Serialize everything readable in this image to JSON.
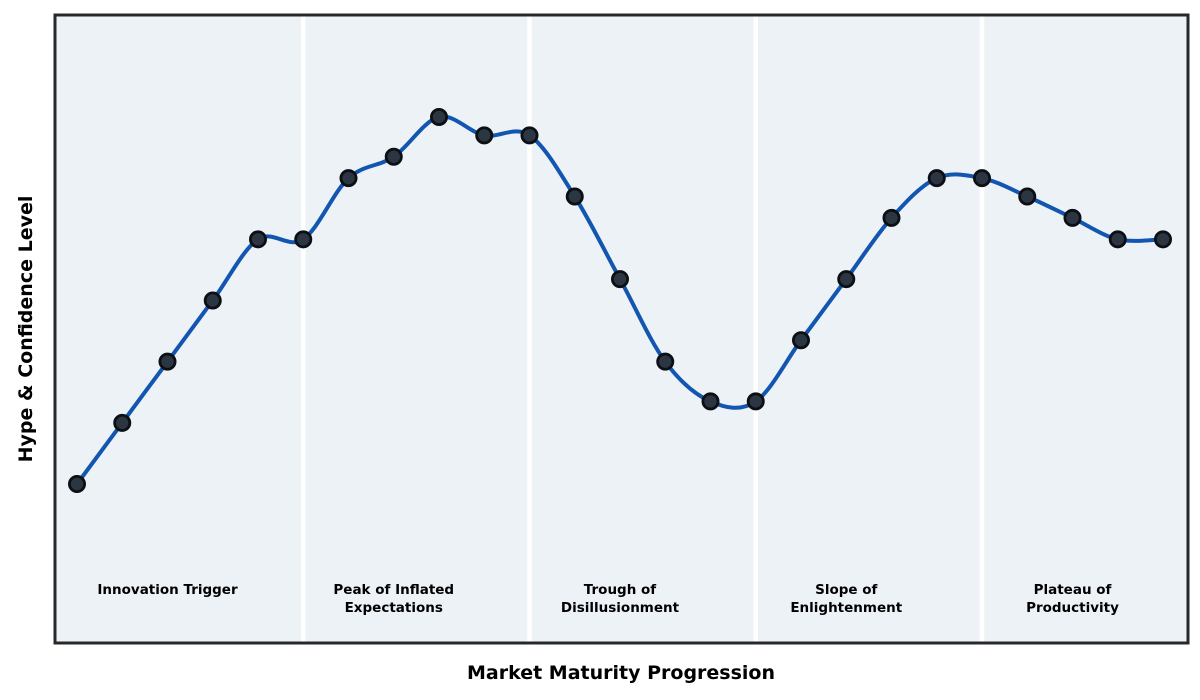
{
  "chart_data": {
    "type": "line",
    "xlabel": "Market Maturity Progression",
    "ylabel": "Hype & Confidence Level",
    "x": [
      0,
      1,
      2,
      3,
      4,
      5,
      6,
      7,
      8,
      9,
      10,
      11,
      12,
      13,
      14,
      15,
      16,
      17,
      18,
      19,
      20,
      21,
      22,
      23,
      24
    ],
    "series": [
      {
        "name": "hype-confidence-curve",
        "values": [
          5,
          15,
          25,
          35,
          45,
          45,
          55,
          58.5,
          65,
          62,
          62,
          52,
          38.5,
          25,
          18.5,
          18.5,
          28.5,
          38.5,
          48.5,
          55,
          55,
          52,
          48.5,
          45,
          45
        ]
      }
    ],
    "xlim": [
      -0.5,
      24.5
    ],
    "ylim_estimated": [
      0,
      75
    ],
    "grid": false,
    "legend_position": "none",
    "axis_ticks": "none",
    "phase_dividers_x": [
      5,
      10,
      15,
      20
    ],
    "phases": [
      {
        "label": "Innovation Trigger",
        "lines": [
          "Innovation Trigger"
        ],
        "x_center": 2,
        "x_range": [
          0,
          5
        ]
      },
      {
        "label": "Peak of Inflated Expectations",
        "lines": [
          "Peak of Inflated",
          "Expectations"
        ],
        "x_center": 7,
        "x_range": [
          5,
          10
        ]
      },
      {
        "label": "Trough of Disillusionment",
        "lines": [
          "Trough of",
          "Disillusionment"
        ],
        "x_center": 12,
        "x_range": [
          10,
          15
        ]
      },
      {
        "label": "Slope of Enlightenment",
        "lines": [
          "Slope of",
          "Enlightenment"
        ],
        "x_center": 17,
        "x_range": [
          15,
          20
        ]
      },
      {
        "label": "Plateau of Productivity",
        "lines": [
          "Plateau of",
          "Productivity"
        ],
        "x_center": 22,
        "x_range": [
          20,
          24
        ]
      }
    ],
    "colors": {
      "line": "#1356b0",
      "marker_fill": "#2b3642",
      "marker_edge": "#0c0f14",
      "plot_background": "#edf2f7",
      "phase_divider": "#ffffff",
      "plot_border": "#26282b",
      "text": "#000000",
      "figure_background": "#ffffff"
    }
  }
}
